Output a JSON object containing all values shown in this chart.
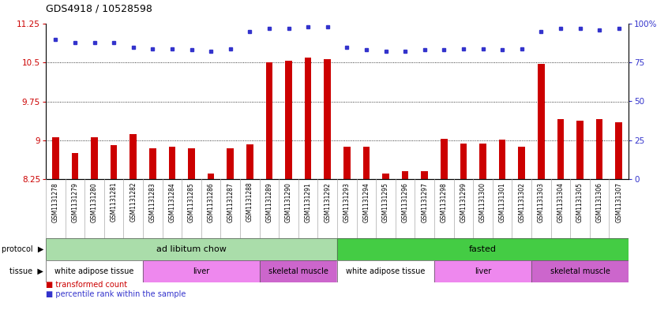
{
  "title": "GDS4918 / 10528598",
  "samples": [
    "GSM1131278",
    "GSM1131279",
    "GSM1131280",
    "GSM1131281",
    "GSM1131282",
    "GSM1131283",
    "GSM1131284",
    "GSM1131285",
    "GSM1131286",
    "GSM1131287",
    "GSM1131288",
    "GSM1131289",
    "GSM1131290",
    "GSM1131291",
    "GSM1131292",
    "GSM1131293",
    "GSM1131294",
    "GSM1131295",
    "GSM1131296",
    "GSM1131297",
    "GSM1131298",
    "GSM1131299",
    "GSM1131300",
    "GSM1131301",
    "GSM1131302",
    "GSM1131303",
    "GSM1131304",
    "GSM1131305",
    "GSM1131306",
    "GSM1131307"
  ],
  "bar_values": [
    9.06,
    8.75,
    9.06,
    8.9,
    9.12,
    8.85,
    8.87,
    8.84,
    8.35,
    8.84,
    8.92,
    10.5,
    10.53,
    10.6,
    10.57,
    8.87,
    8.87,
    8.35,
    8.4,
    8.4,
    9.02,
    8.93,
    8.93,
    9.01,
    8.88,
    10.47,
    9.4,
    9.38,
    9.4,
    9.35
  ],
  "percentile_values": [
    90,
    88,
    88,
    88,
    85,
    84,
    84,
    83,
    82,
    84,
    95,
    97,
    97,
    98,
    98,
    85,
    83,
    82,
    82,
    83,
    83,
    84,
    84,
    83,
    84,
    95,
    97,
    97,
    96,
    97
  ],
  "ylim_left": [
    8.25,
    11.25
  ],
  "ylim_right": [
    0,
    100
  ],
  "yticks_left": [
    8.25,
    9.0,
    9.75,
    10.5,
    11.25
  ],
  "ytick_labels_left": [
    "8.25",
    "9",
    "9.75",
    "10.5",
    "11.25"
  ],
  "yticks_right": [
    0,
    25,
    50,
    75,
    100
  ],
  "ytick_labels_right": [
    "0",
    "25",
    "50",
    "75",
    "100%"
  ],
  "bar_color": "#cc0000",
  "dot_color": "#3333cc",
  "chart_bg": "#ffffff",
  "xtick_bg": "#d0d0d0",
  "grid_color": "#000000",
  "protocol_groups": [
    {
      "label": "ad libitum chow",
      "start": 0,
      "end": 15,
      "color": "#aaddaa"
    },
    {
      "label": "fasted",
      "start": 15,
      "end": 30,
      "color": "#44cc44"
    }
  ],
  "tissue_groups": [
    {
      "label": "white adipose tissue",
      "start": 0,
      "end": 5,
      "color": "#ffffff"
    },
    {
      "label": "liver",
      "start": 5,
      "end": 11,
      "color": "#ee88ee"
    },
    {
      "label": "skeletal muscle",
      "start": 11,
      "end": 15,
      "color": "#cc66cc"
    },
    {
      "label": "white adipose tissue",
      "start": 15,
      "end": 20,
      "color": "#ffffff"
    },
    {
      "label": "liver",
      "start": 20,
      "end": 25,
      "color": "#ee88ee"
    },
    {
      "label": "skeletal muscle",
      "start": 25,
      "end": 30,
      "color": "#cc66cc"
    }
  ]
}
